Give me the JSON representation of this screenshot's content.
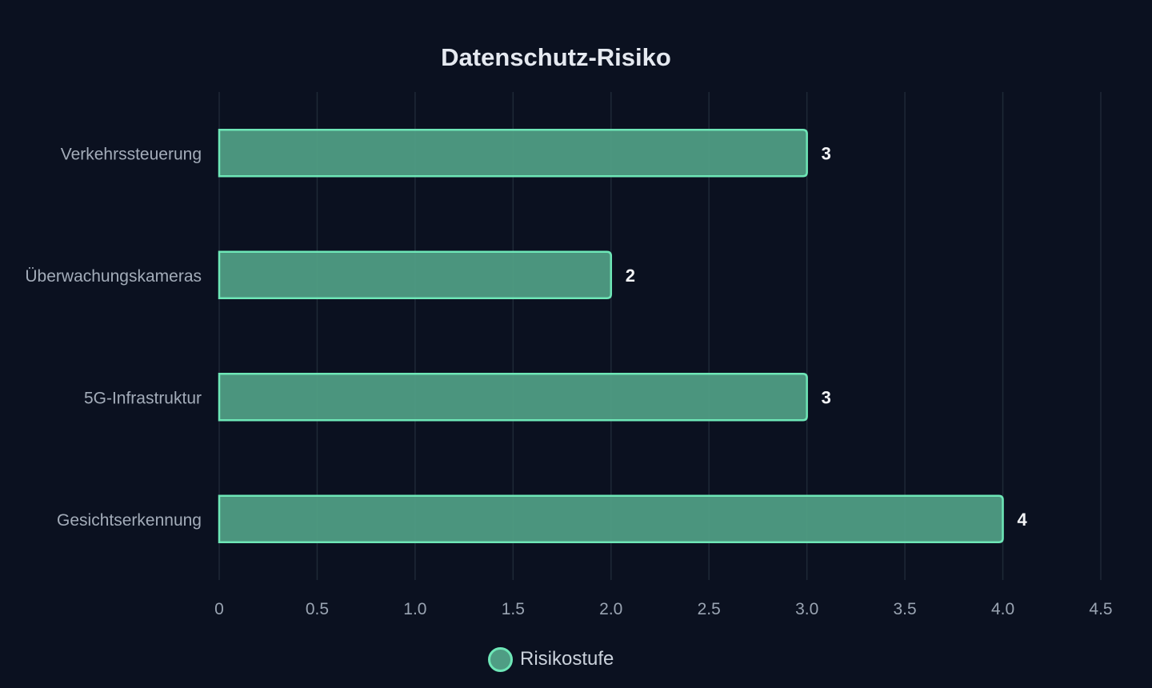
{
  "chart_data": {
    "type": "bar",
    "orientation": "horizontal",
    "title": "Datenschutz-Risiko",
    "categories": [
      "Verkehrssteuerung",
      "Überwachungskameras",
      "5G-Infrastruktur",
      "Gesichtserkennung"
    ],
    "series": [
      {
        "name": "Risikostufe",
        "values": [
          3,
          2,
          3,
          4
        ]
      }
    ],
    "xlim": [
      0,
      4.5
    ],
    "xticks": [
      "0",
      "0.5",
      "1.0",
      "1.5",
      "2.0",
      "2.5",
      "3.0",
      "3.5",
      "4.0",
      "4.5"
    ],
    "grid": true,
    "legend_position": "bottom",
    "data_labels": true,
    "colors": {
      "background": "#0b1120",
      "bar_fill": "#4f9d84",
      "bar_stroke": "#6ee7b7",
      "grid": "#1f2937",
      "title": "#e5e9f0",
      "tick_label": "#9aa4b2",
      "category_label": "#a3acb9",
      "value_label": "#f3f4f6"
    }
  }
}
